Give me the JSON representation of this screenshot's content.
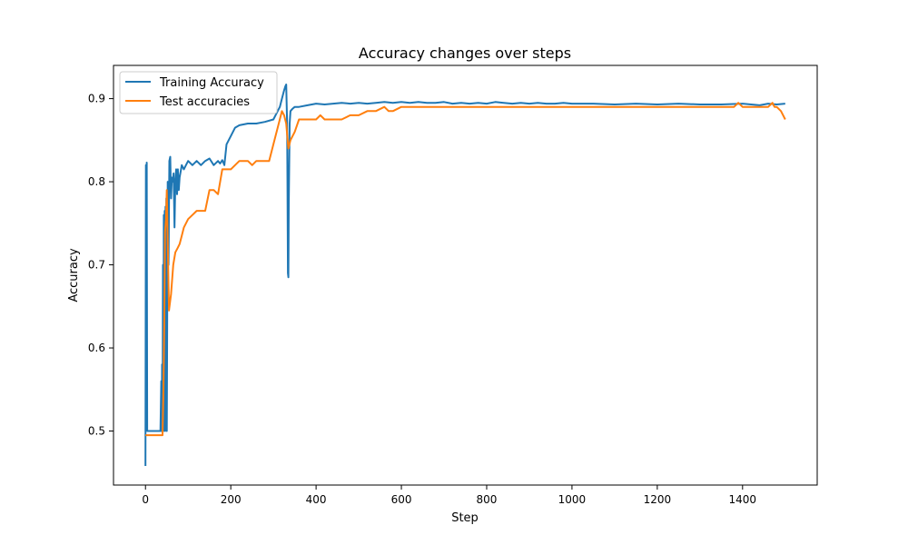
{
  "chart_data": {
    "type": "line",
    "title": "Accuracy changes over steps",
    "xlabel": "Step",
    "ylabel": "Accuracy",
    "xlim": [
      -75,
      1575
    ],
    "ylim": [
      0.435,
      0.94
    ],
    "xticks": [
      0,
      200,
      400,
      600,
      800,
      1000,
      1200,
      1400
    ],
    "yticks": [
      0.5,
      0.6,
      0.7,
      0.8,
      0.9
    ],
    "grid": false,
    "legend_position": "top-left",
    "series": [
      {
        "name": "Training Accuracy",
        "color": "#1f77b4",
        "x": [
          0,
          1,
          2,
          3,
          4,
          5,
          6,
          8,
          10,
          15,
          20,
          25,
          30,
          35,
          37,
          38,
          39,
          40,
          41,
          42,
          43,
          44,
          45,
          46,
          47,
          48,
          49,
          50,
          52,
          54,
          56,
          58,
          60,
          62,
          64,
          66,
          68,
          70,
          72,
          74,
          76,
          78,
          80,
          85,
          90,
          95,
          100,
          110,
          120,
          130,
          140,
          150,
          160,
          170,
          175,
          180,
          185,
          190,
          200,
          210,
          220,
          240,
          260,
          280,
          300,
          310,
          315,
          320,
          325,
          328,
          330,
          332,
          333,
          334,
          335,
          336,
          338,
          340,
          345,
          350,
          360,
          380,
          400,
          420,
          440,
          460,
          480,
          500,
          520,
          540,
          560,
          580,
          600,
          620,
          640,
          660,
          680,
          700,
          720,
          740,
          760,
          780,
          800,
          820,
          840,
          860,
          880,
          900,
          920,
          940,
          960,
          980,
          1000,
          1050,
          1100,
          1150,
          1200,
          1250,
          1300,
          1350,
          1400,
          1420,
          1440,
          1460,
          1480,
          1500
        ],
        "values": [
          0.458,
          0.82,
          0.8,
          0.823,
          0.5,
          0.5,
          0.5,
          0.5,
          0.5,
          0.5,
          0.5,
          0.5,
          0.5,
          0.5,
          0.56,
          0.5,
          0.58,
          0.5,
          0.7,
          0.5,
          0.76,
          0.72,
          0.765,
          0.5,
          0.77,
          0.62,
          0.78,
          0.5,
          0.8,
          0.7,
          0.825,
          0.83,
          0.78,
          0.805,
          0.8,
          0.81,
          0.745,
          0.8,
          0.815,
          0.785,
          0.815,
          0.79,
          0.805,
          0.82,
          0.815,
          0.82,
          0.825,
          0.82,
          0.825,
          0.82,
          0.825,
          0.828,
          0.82,
          0.825,
          0.822,
          0.826,
          0.82,
          0.845,
          0.855,
          0.865,
          0.868,
          0.87,
          0.87,
          0.872,
          0.875,
          0.885,
          0.89,
          0.9,
          0.91,
          0.915,
          0.917,
          0.87,
          0.8,
          0.69,
          0.685,
          0.77,
          0.87,
          0.885,
          0.888,
          0.89,
          0.89,
          0.892,
          0.894,
          0.893,
          0.894,
          0.895,
          0.894,
          0.895,
          0.894,
          0.895,
          0.896,
          0.895,
          0.896,
          0.895,
          0.896,
          0.895,
          0.895,
          0.896,
          0.894,
          0.895,
          0.894,
          0.895,
          0.894,
          0.896,
          0.895,
          0.894,
          0.895,
          0.894,
          0.895,
          0.894,
          0.894,
          0.895,
          0.894,
          0.894,
          0.893,
          0.894,
          0.893,
          0.894,
          0.893,
          0.893,
          0.894,
          0.893,
          0.892,
          0.894,
          0.893,
          0.894
        ]
      },
      {
        "name": "Test accuracies",
        "color": "#ff7f0e",
        "x": [
          0,
          10,
          20,
          30,
          40,
          42,
          44,
          46,
          48,
          50,
          55,
          60,
          65,
          70,
          75,
          80,
          85,
          90,
          100,
          110,
          120,
          130,
          140,
          150,
          160,
          170,
          180,
          190,
          200,
          210,
          220,
          230,
          240,
          250,
          260,
          270,
          280,
          290,
          300,
          310,
          320,
          325,
          330,
          335,
          340,
          350,
          360,
          380,
          400,
          410,
          420,
          440,
          460,
          480,
          500,
          520,
          540,
          560,
          570,
          580,
          600,
          650,
          700,
          800,
          900,
          1000,
          1100,
          1200,
          1300,
          1350,
          1380,
          1390,
          1400,
          1410,
          1420,
          1440,
          1460,
          1470,
          1475,
          1480,
          1490,
          1500
        ],
        "values": [
          0.495,
          0.495,
          0.495,
          0.495,
          0.495,
          0.55,
          0.63,
          0.74,
          0.755,
          0.79,
          0.645,
          0.665,
          0.7,
          0.715,
          0.72,
          0.725,
          0.735,
          0.745,
          0.755,
          0.76,
          0.765,
          0.765,
          0.765,
          0.79,
          0.79,
          0.785,
          0.815,
          0.815,
          0.815,
          0.82,
          0.825,
          0.825,
          0.825,
          0.82,
          0.825,
          0.825,
          0.825,
          0.825,
          0.845,
          0.865,
          0.885,
          0.88,
          0.87,
          0.84,
          0.85,
          0.86,
          0.875,
          0.875,
          0.875,
          0.88,
          0.875,
          0.875,
          0.875,
          0.88,
          0.88,
          0.885,
          0.885,
          0.89,
          0.885,
          0.885,
          0.89,
          0.89,
          0.89,
          0.89,
          0.89,
          0.89,
          0.89,
          0.89,
          0.89,
          0.89,
          0.89,
          0.895,
          0.89,
          0.89,
          0.89,
          0.89,
          0.89,
          0.895,
          0.89,
          0.89,
          0.885,
          0.875
        ]
      }
    ]
  }
}
